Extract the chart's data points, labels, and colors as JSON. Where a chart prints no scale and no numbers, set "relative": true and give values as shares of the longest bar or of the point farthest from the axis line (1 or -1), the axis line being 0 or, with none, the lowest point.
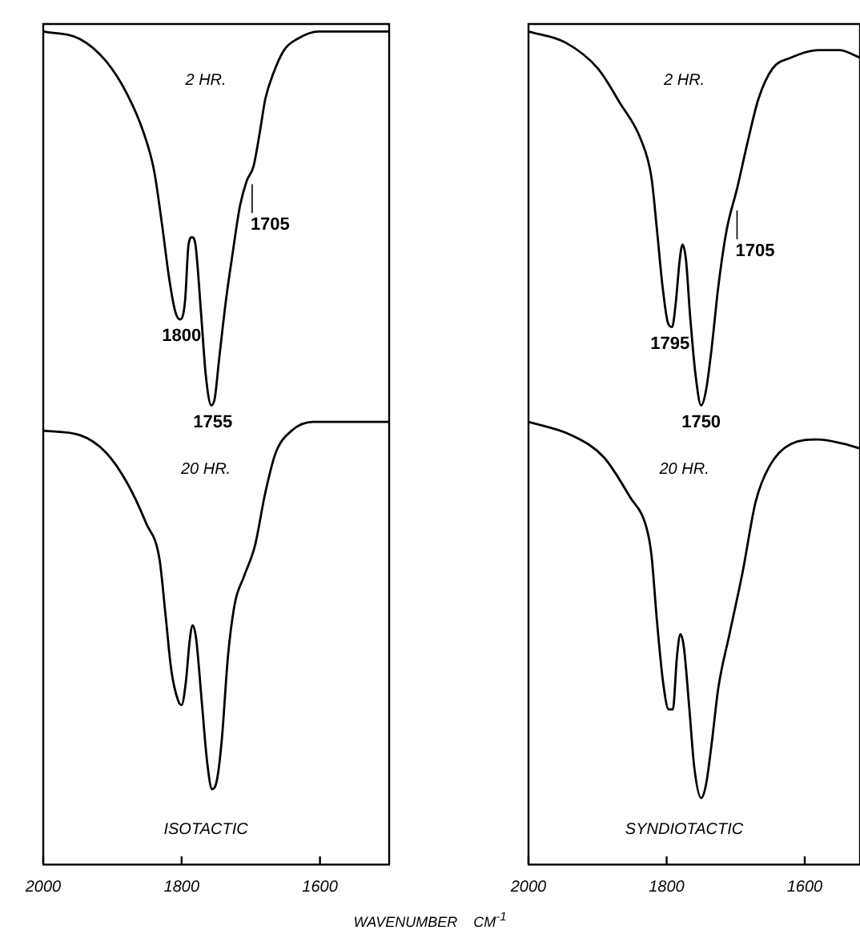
{
  "chart_data": [
    {
      "type": "line",
      "relative": true,
      "xlim": [
        2000,
        1500
      ],
      "tick_labels": false,
      "grid": false,
      "marker": "none",
      "annotations": [
        "2 HR.",
        {
          "text": "1800",
          "x": 1800,
          "y": 0.23
        },
        {
          "text": "1755",
          "x": 1755,
          "y": 0.0
        },
        {
          "text": "1705",
          "x": 1705,
          "y": 0.6
        }
      ],
      "x": [
        2000,
        1947,
        1909,
        1878,
        1855,
        1840,
        1828,
        1818,
        1809,
        1802,
        1795,
        1790,
        1785,
        1780,
        1772,
        1765,
        1757,
        1752,
        1746,
        1736,
        1726,
        1716,
        1706,
        1696,
        1687,
        1679,
        1667,
        1652,
        1633,
        1602,
        1500
      ],
      "series": [
        {
          "color": "#000000",
          "values": [
            1.0,
            0.98,
            0.92,
            0.83,
            0.73,
            0.63,
            0.48,
            0.34,
            0.25,
            0.23,
            0.28,
            0.43,
            0.45,
            0.43,
            0.25,
            0.08,
            0.0,
            0.02,
            0.12,
            0.28,
            0.41,
            0.53,
            0.6,
            0.64,
            0.73,
            0.82,
            0.89,
            0.95,
            0.98,
            1.0,
            1.0
          ]
        }
      ]
    },
    {
      "type": "line",
      "relative": true,
      "xlim": [
        2000,
        1520
      ],
      "tick_labels": false,
      "grid": false,
      "marker": "none",
      "annotations": [
        "2 HR.",
        {
          "text": "1795",
          "x": 1795,
          "y": 0.21
        },
        {
          "text": "1750",
          "x": 1750,
          "y": 0.0
        },
        {
          "text": "1705",
          "x": 1705,
          "y": 0.53
        }
      ],
      "x": [
        2000,
        1946,
        1899,
        1868,
        1837,
        1822,
        1814,
        1806,
        1798,
        1792,
        1787,
        1781,
        1777,
        1772,
        1766,
        1758,
        1750,
        1743,
        1735,
        1725,
        1713,
        1698,
        1682,
        1667,
        1647,
        1620,
        1581,
        1550,
        1520
      ],
      "series": [
        {
          "color": "#000000",
          "values": [
            1.0,
            0.97,
            0.9,
            0.81,
            0.71,
            0.61,
            0.47,
            0.32,
            0.22,
            0.21,
            0.27,
            0.39,
            0.43,
            0.39,
            0.24,
            0.08,
            0.0,
            0.04,
            0.15,
            0.32,
            0.47,
            0.58,
            0.71,
            0.82,
            0.9,
            0.93,
            0.95,
            0.95,
            0.93
          ]
        }
      ]
    },
    {
      "type": "line",
      "relative": true,
      "xlim": [
        2000,
        1500
      ],
      "grid": false,
      "marker": "none",
      "xlabel": "WAVENUMBER    CM$^{-1}$",
      "xticks": [
        2000,
        1800,
        1600
      ],
      "annotations": [
        "20 HR.",
        "ISOTACTIC"
      ],
      "x": [
        2000,
        1947,
        1909,
        1878,
        1851,
        1832,
        1823,
        1815,
        1805,
        1800,
        1794,
        1788,
        1784,
        1779,
        1771,
        1763,
        1756,
        1749,
        1742,
        1733,
        1723,
        1710,
        1694,
        1679,
        1664,
        1641,
        1610,
        1500
      ],
      "series": [
        {
          "color": "#000000",
          "values": [
            0.98,
            0.97,
            0.93,
            0.86,
            0.77,
            0.69,
            0.56,
            0.44,
            0.37,
            0.36,
            0.41,
            0.51,
            0.54,
            0.51,
            0.37,
            0.23,
            0.17,
            0.19,
            0.28,
            0.47,
            0.59,
            0.65,
            0.72,
            0.84,
            0.93,
            0.98,
            1.0,
            1.0
          ]
        }
      ]
    },
    {
      "type": "line",
      "relative": true,
      "xlim": [
        2000,
        1520
      ],
      "grid": false,
      "marker": "none",
      "xticks": [
        2000,
        1800,
        1600
      ],
      "annotations": [
        "20 HR.",
        "SYNDIOTACTIC"
      ],
      "x": [
        2000,
        1938,
        1891,
        1853,
        1829,
        1822,
        1814,
        1805,
        1797,
        1791,
        1785,
        1780,
        1775,
        1767,
        1760,
        1750,
        1743,
        1735,
        1725,
        1709,
        1690,
        1671,
        1651,
        1620,
        1581,
        1543,
        1520
      ],
      "series": [
        {
          "color": "#000000",
          "values": [
            1.0,
            0.97,
            0.92,
            0.83,
            0.76,
            0.7,
            0.55,
            0.41,
            0.35,
            0.35,
            0.47,
            0.52,
            0.49,
            0.35,
            0.22,
            0.15,
            0.18,
            0.27,
            0.4,
            0.52,
            0.66,
            0.82,
            0.9,
            0.95,
            0.96,
            0.95,
            0.94
          ]
        }
      ]
    }
  ]
}
